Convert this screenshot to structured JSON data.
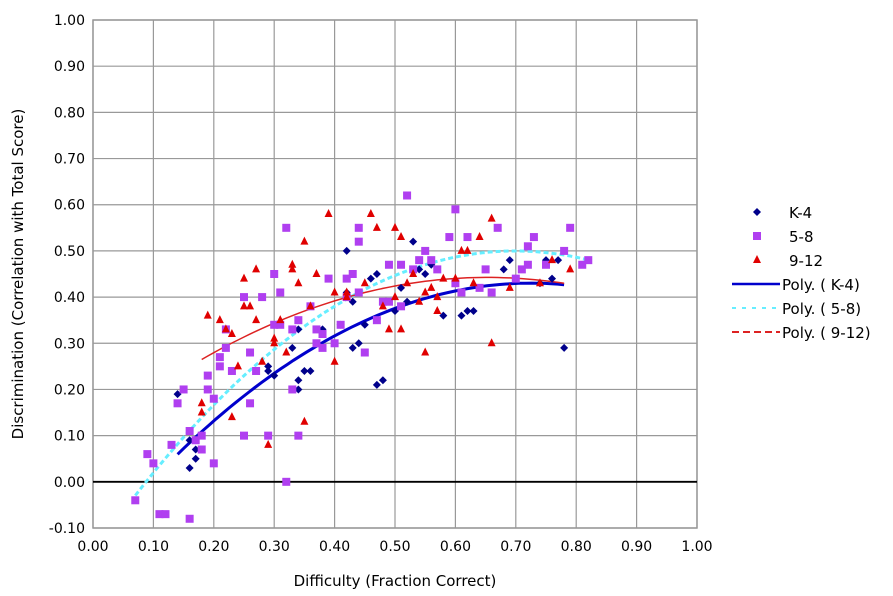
{
  "chart_data": {
    "type": "scatter",
    "title": "",
    "xlabel": "Difficulty (Fraction Correct)",
    "ylabel": "Discrimination (Correlation with Total Score)",
    "xlim": [
      0,
      1
    ],
    "ylim": [
      -0.1,
      1
    ],
    "xticks": [
      "0.00",
      "0.10",
      "0.20",
      "0.30",
      "0.40",
      "0.50",
      "0.60",
      "0.70",
      "0.80",
      "0.90",
      "1.00"
    ],
    "yticks": [
      "-0.10",
      "0.00",
      "0.10",
      "0.20",
      "0.30",
      "0.40",
      "0.50",
      "0.60",
      "0.70",
      "0.80",
      "0.90",
      "1.00"
    ],
    "grid": true,
    "legend_position": "right",
    "series": [
      {
        "name": "K-4",
        "marker": "diamond",
        "color": "#00008B",
        "points": [
          [
            0.14,
            0.19
          ],
          [
            0.16,
            0.03
          ],
          [
            0.17,
            0.05
          ],
          [
            0.17,
            0.07
          ],
          [
            0.16,
            0.09
          ],
          [
            0.29,
            0.24
          ],
          [
            0.3,
            0.23
          ],
          [
            0.33,
            0.29
          ],
          [
            0.34,
            0.22
          ],
          [
            0.34,
            0.2
          ],
          [
            0.35,
            0.24
          ],
          [
            0.36,
            0.24
          ],
          [
            0.38,
            0.33
          ],
          [
            0.34,
            0.33
          ],
          [
            0.42,
            0.41
          ],
          [
            0.42,
            0.5
          ],
          [
            0.43,
            0.39
          ],
          [
            0.41,
            0.34
          ],
          [
            0.43,
            0.29
          ],
          [
            0.44,
            0.3
          ],
          [
            0.45,
            0.34
          ],
          [
            0.47,
            0.21
          ],
          [
            0.48,
            0.22
          ],
          [
            0.46,
            0.44
          ],
          [
            0.47,
            0.45
          ],
          [
            0.51,
            0.42
          ],
          [
            0.53,
            0.52
          ],
          [
            0.54,
            0.46
          ],
          [
            0.55,
            0.45
          ],
          [
            0.52,
            0.39
          ],
          [
            0.56,
            0.47
          ],
          [
            0.5,
            0.37
          ],
          [
            0.58,
            0.36
          ],
          [
            0.61,
            0.36
          ],
          [
            0.62,
            0.37
          ],
          [
            0.63,
            0.37
          ],
          [
            0.68,
            0.46
          ],
          [
            0.69,
            0.48
          ],
          [
            0.74,
            0.43
          ],
          [
            0.75,
            0.48
          ],
          [
            0.76,
            0.44
          ],
          [
            0.77,
            0.48
          ],
          [
            0.78,
            0.29
          ],
          [
            0.29,
            0.25
          ]
        ]
      },
      {
        "name": "5-8",
        "marker": "square",
        "color": "#B03FF0",
        "points": [
          [
            0.07,
            -0.04
          ],
          [
            0.09,
            0.06
          ],
          [
            0.1,
            0.04
          ],
          [
            0.11,
            -0.07
          ],
          [
            0.12,
            -0.07
          ],
          [
            0.13,
            0.08
          ],
          [
            0.14,
            0.17
          ],
          [
            0.15,
            0.2
          ],
          [
            0.16,
            -0.08
          ],
          [
            0.16,
            0.11
          ],
          [
            0.17,
            0.09
          ],
          [
            0.18,
            0.07
          ],
          [
            0.18,
            0.1
          ],
          [
            0.19,
            0.2
          ],
          [
            0.19,
            0.23
          ],
          [
            0.2,
            0.18
          ],
          [
            0.2,
            0.04
          ],
          [
            0.21,
            0.25
          ],
          [
            0.21,
            0.27
          ],
          [
            0.22,
            0.29
          ],
          [
            0.22,
            0.33
          ],
          [
            0.23,
            0.24
          ],
          [
            0.25,
            0.1
          ],
          [
            0.25,
            0.4
          ],
          [
            0.26,
            0.28
          ],
          [
            0.26,
            0.17
          ],
          [
            0.27,
            0.24
          ],
          [
            0.28,
            0.4
          ],
          [
            0.29,
            0.1
          ],
          [
            0.3,
            0.45
          ],
          [
            0.3,
            0.34
          ],
          [
            0.31,
            0.41
          ],
          [
            0.32,
            0.55
          ],
          [
            0.32,
            0.0
          ],
          [
            0.33,
            0.33
          ],
          [
            0.33,
            0.2
          ],
          [
            0.34,
            0.1
          ],
          [
            0.34,
            0.35
          ],
          [
            0.36,
            0.38
          ],
          [
            0.37,
            0.3
          ],
          [
            0.38,
            0.32
          ],
          [
            0.38,
            0.29
          ],
          [
            0.4,
            0.3
          ],
          [
            0.41,
            0.34
          ],
          [
            0.42,
            0.4
          ],
          [
            0.42,
            0.44
          ],
          [
            0.43,
            0.45
          ],
          [
            0.44,
            0.41
          ],
          [
            0.44,
            0.55
          ],
          [
            0.45,
            0.28
          ],
          [
            0.47,
            0.35
          ],
          [
            0.48,
            0.39
          ],
          [
            0.49,
            0.39
          ],
          [
            0.49,
            0.47
          ],
          [
            0.51,
            0.38
          ],
          [
            0.52,
            0.62
          ],
          [
            0.53,
            0.46
          ],
          [
            0.54,
            0.48
          ],
          [
            0.55,
            0.5
          ],
          [
            0.56,
            0.48
          ],
          [
            0.57,
            0.46
          ],
          [
            0.59,
            0.53
          ],
          [
            0.6,
            0.43
          ],
          [
            0.6,
            0.59
          ],
          [
            0.61,
            0.41
          ],
          [
            0.62,
            0.53
          ],
          [
            0.64,
            0.42
          ],
          [
            0.65,
            0.46
          ],
          [
            0.66,
            0.41
          ],
          [
            0.67,
            0.55
          ],
          [
            0.7,
            0.44
          ],
          [
            0.71,
            0.46
          ],
          [
            0.72,
            0.47
          ],
          [
            0.72,
            0.51
          ],
          [
            0.73,
            0.53
          ],
          [
            0.75,
            0.47
          ],
          [
            0.78,
            0.5
          ],
          [
            0.79,
            0.55
          ],
          [
            0.81,
            0.47
          ],
          [
            0.82,
            0.48
          ],
          [
            0.51,
            0.47
          ],
          [
            0.44,
            0.52
          ],
          [
            0.39,
            0.44
          ],
          [
            0.37,
            0.33
          ],
          [
            0.31,
            0.34
          ]
        ]
      },
      {
        "name": "9-12",
        "marker": "triangle",
        "color": "#E00000",
        "points": [
          [
            0.18,
            0.15
          ],
          [
            0.18,
            0.17
          ],
          [
            0.19,
            0.36
          ],
          [
            0.21,
            0.35
          ],
          [
            0.22,
            0.33
          ],
          [
            0.23,
            0.32
          ],
          [
            0.23,
            0.14
          ],
          [
            0.24,
            0.25
          ],
          [
            0.25,
            0.44
          ],
          [
            0.25,
            0.38
          ],
          [
            0.26,
            0.38
          ],
          [
            0.27,
            0.46
          ],
          [
            0.27,
            0.35
          ],
          [
            0.28,
            0.26
          ],
          [
            0.29,
            0.08
          ],
          [
            0.3,
            0.31
          ],
          [
            0.3,
            0.3
          ],
          [
            0.31,
            0.35
          ],
          [
            0.32,
            0.28
          ],
          [
            0.33,
            0.47
          ],
          [
            0.33,
            0.46
          ],
          [
            0.34,
            0.43
          ],
          [
            0.35,
            0.13
          ],
          [
            0.35,
            0.52
          ],
          [
            0.36,
            0.38
          ],
          [
            0.37,
            0.45
          ],
          [
            0.39,
            0.58
          ],
          [
            0.4,
            0.26
          ],
          [
            0.4,
            0.41
          ],
          [
            0.42,
            0.4
          ],
          [
            0.42,
            0.41
          ],
          [
            0.45,
            0.43
          ],
          [
            0.46,
            0.58
          ],
          [
            0.47,
            0.55
          ],
          [
            0.48,
            0.38
          ],
          [
            0.49,
            0.33
          ],
          [
            0.5,
            0.55
          ],
          [
            0.5,
            0.4
          ],
          [
            0.51,
            0.33
          ],
          [
            0.51,
            0.53
          ],
          [
            0.52,
            0.43
          ],
          [
            0.53,
            0.45
          ],
          [
            0.54,
            0.39
          ],
          [
            0.55,
            0.41
          ],
          [
            0.55,
            0.28
          ],
          [
            0.56,
            0.42
          ],
          [
            0.57,
            0.37
          ],
          [
            0.57,
            0.4
          ],
          [
            0.58,
            0.44
          ],
          [
            0.6,
            0.44
          ],
          [
            0.61,
            0.5
          ],
          [
            0.62,
            0.5
          ],
          [
            0.63,
            0.43
          ],
          [
            0.64,
            0.53
          ],
          [
            0.66,
            0.57
          ],
          [
            0.66,
            0.3
          ],
          [
            0.69,
            0.42
          ],
          [
            0.74,
            0.43
          ],
          [
            0.76,
            0.48
          ],
          [
            0.79,
            0.46
          ]
        ]
      }
    ],
    "trendlines": [
      {
        "name": "Poly. ( K-4)",
        "type": "polynomial-2",
        "coef": [
          -0.139,
          1.571,
          -1.084
        ],
        "x_range": [
          0.14,
          0.78
        ],
        "color": "#0000CC",
        "style": "solid"
      },
      {
        "name": "Poly. ( 5-8)",
        "type": "polynomial-2",
        "coef": [
          -0.154,
          1.87,
          -1.337
        ],
        "x_range": [
          0.07,
          0.82
        ],
        "color": "#66EEFF",
        "style": "dashed"
      },
      {
        "name": "Poly. ( 9-12)",
        "type": "polynomial-2",
        "coef": [
          0.104,
          1.037,
          -0.794
        ],
        "x_range": [
          0.18,
          0.78
        ],
        "color": "#DD2222",
        "style": "dashed"
      }
    ]
  }
}
